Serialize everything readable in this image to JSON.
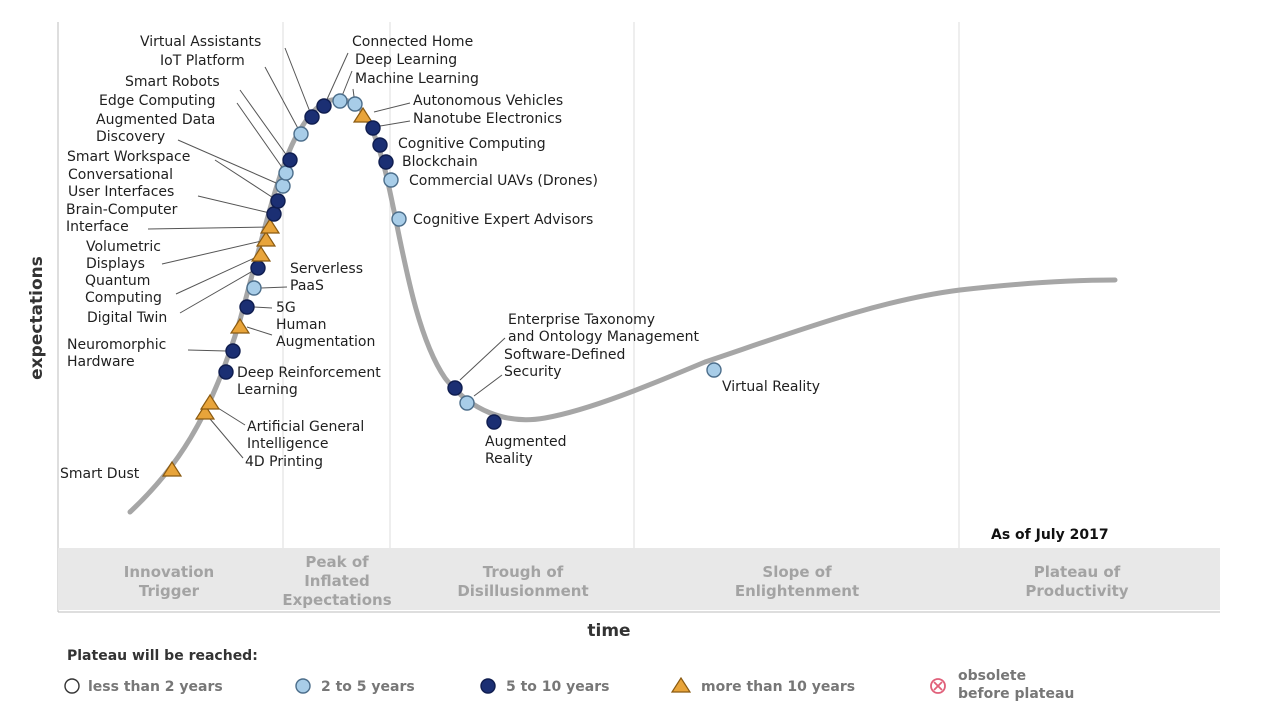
{
  "axes": {
    "y_label": "expectations",
    "x_label": "time"
  },
  "as_of": "As of July 2017",
  "phases": [
    {
      "lines": [
        "Innovation",
        "Trigger"
      ]
    },
    {
      "lines": [
        "Peak of",
        "Inflated",
        "Expectations"
      ]
    },
    {
      "lines": [
        "Trough of",
        "Disillusionment"
      ]
    },
    {
      "lines": [
        "Slope of",
        "Enlightenment"
      ]
    },
    {
      "lines": [
        "Plateau of",
        "Productivity"
      ]
    }
  ],
  "legend": {
    "title": "Plateau will be reached:",
    "items": [
      {
        "key": "lt2",
        "lines": [
          "less than 2 years"
        ]
      },
      {
        "key": "2to5",
        "lines": [
          "2 to 5 years"
        ]
      },
      {
        "key": "5to10",
        "lines": [
          "5 to 10 years"
        ]
      },
      {
        "key": "gt10",
        "lines": [
          "more than 10 years"
        ]
      },
      {
        "key": "obsolete",
        "lines": [
          "obsolete",
          "before plateau"
        ]
      }
    ]
  },
  "colors": {
    "curve": "#a6a6a6",
    "lt2": "#ffffff",
    "2to5": "#a8cde8",
    "5to10": "#1b2f73",
    "gt10": "#e8a43a",
    "obsolete": "#e0607a",
    "band": "#e8e8e8"
  },
  "technologies": [
    {
      "name": "Smart Dust",
      "lines": [
        "Smart Dust"
      ],
      "category": "gt10"
    },
    {
      "name": "4D Printing",
      "lines": [
        "4D Printing"
      ],
      "category": "gt10"
    },
    {
      "name": "Artificial General Intelligence",
      "lines": [
        "Artificial General",
        "Intelligence"
      ],
      "category": "gt10"
    },
    {
      "name": "Deep Reinforcement Learning",
      "lines": [
        "Deep Reinforcement",
        "Learning"
      ],
      "category": "5to10"
    },
    {
      "name": "Neuromorphic Hardware",
      "lines": [
        "Neuromorphic",
        "Hardware"
      ],
      "category": "5to10"
    },
    {
      "name": "Human Augmentation",
      "lines": [
        "Human",
        "Augmentation"
      ],
      "category": "gt10"
    },
    {
      "name": "5G",
      "lines": [
        "5G"
      ],
      "category": "5to10"
    },
    {
      "name": "Serverless PaaS",
      "lines": [
        "Serverless",
        "PaaS"
      ],
      "category": "2to5"
    },
    {
      "name": "Digital Twin",
      "lines": [
        "Digital Twin"
      ],
      "category": "5to10"
    },
    {
      "name": "Quantum Computing",
      "lines": [
        "Quantum",
        "Computing"
      ],
      "category": "gt10"
    },
    {
      "name": "Volumetric Displays",
      "lines": [
        "Volumetric",
        "Displays"
      ],
      "category": "gt10"
    },
    {
      "name": "Brain-Computer Interface",
      "lines": [
        "Brain-Computer",
        "Interface"
      ],
      "category": "gt10"
    },
    {
      "name": "Conversational User Interfaces",
      "lines": [
        "Conversational",
        "User Interfaces"
      ],
      "category": "5to10"
    },
    {
      "name": "Smart Workspace",
      "lines": [
        "Smart Workspace"
      ],
      "category": "5to10"
    },
    {
      "name": "Augmented Data Discovery",
      "lines": [
        "Augmented Data",
        "Discovery"
      ],
      "category": "2to5"
    },
    {
      "name": "Edge Computing",
      "lines": [
        "Edge Computing"
      ],
      "category": "2to5"
    },
    {
      "name": "Smart Robots",
      "lines": [
        "Smart Robots"
      ],
      "category": "5to10"
    },
    {
      "name": "IoT Platform",
      "lines": [
        "IoT Platform"
      ],
      "category": "2to5"
    },
    {
      "name": "Virtual Assistants",
      "lines": [
        "Virtual Assistants"
      ],
      "category": "5to10"
    },
    {
      "name": "Connected Home",
      "lines": [
        "Connected Home"
      ],
      "category": "5to10"
    },
    {
      "name": "Deep Learning",
      "lines": [
        "Deep Learning"
      ],
      "category": "2to5"
    },
    {
      "name": "Machine Learning",
      "lines": [
        "Machine Learning"
      ],
      "category": "2to5"
    },
    {
      "name": "Autonomous Vehicles",
      "lines": [
        "Autonomous Vehicles"
      ],
      "category": "gt10"
    },
    {
      "name": "Nanotube Electronics",
      "lines": [
        "Nanotube Electronics"
      ],
      "category": "5to10"
    },
    {
      "name": "Cognitive Computing",
      "lines": [
        "Cognitive Computing"
      ],
      "category": "5to10"
    },
    {
      "name": "Blockchain",
      "lines": [
        "Blockchain"
      ],
      "category": "5to10"
    },
    {
      "name": "Commercial UAVs (Drones)",
      "lines": [
        "Commercial UAVs (Drones)"
      ],
      "category": "2to5"
    },
    {
      "name": "Cognitive Expert Advisors",
      "lines": [
        "Cognitive Expert Advisors"
      ],
      "category": "2to5"
    },
    {
      "name": "Enterprise Taxonomy and Ontology Management",
      "lines": [
        "Enterprise Taxonomy",
        "and Ontology Management"
      ],
      "category": "5to10"
    },
    {
      "name": "Software-Defined Security",
      "lines": [
        "Software-Defined",
        "Security"
      ],
      "category": "2to5"
    },
    {
      "name": "Augmented Reality",
      "lines": [
        "Augmented",
        "Reality"
      ],
      "category": "5to10"
    },
    {
      "name": "Virtual Reality",
      "lines": [
        "Virtual Reality"
      ],
      "category": "2to5"
    }
  ]
}
